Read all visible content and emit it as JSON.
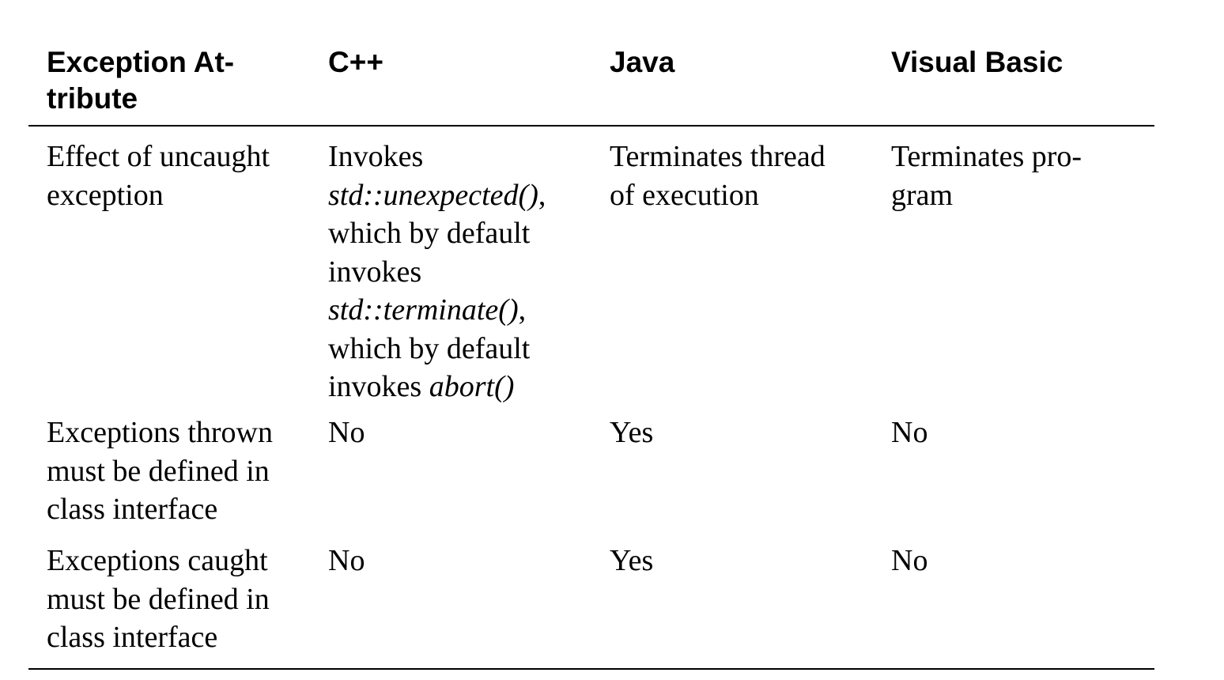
{
  "table": {
    "headers": [
      "Exception At-\ntribute",
      "C++",
      "Java",
      "Visual Basic"
    ],
    "rows": [
      {
        "attribute": "Effect of uncaught\nexception",
        "cpp_parts": [
          {
            "text": "Invokes\n",
            "italic": false
          },
          {
            "text": "std::unexpected()",
            "italic": true
          },
          {
            "text": ",\nwhich by default\ninvokes\n",
            "italic": false
          },
          {
            "text": "std::terminate()",
            "italic": true
          },
          {
            "text": ",\nwhich by default\ninvokes ",
            "italic": false
          },
          {
            "text": "abort()",
            "italic": true
          }
        ],
        "java": "Terminates thread\nof execution",
        "vb": "Terminates pro-\ngram"
      },
      {
        "attribute": "Exceptions thrown\nmust be defined in\nclass interface",
        "cpp": "No",
        "java": "Yes",
        "vb": "No"
      },
      {
        "attribute": "Exceptions caught\nmust be defined in\nclass interface",
        "cpp": "No",
        "java": "Yes",
        "vb": "No"
      }
    ]
  }
}
